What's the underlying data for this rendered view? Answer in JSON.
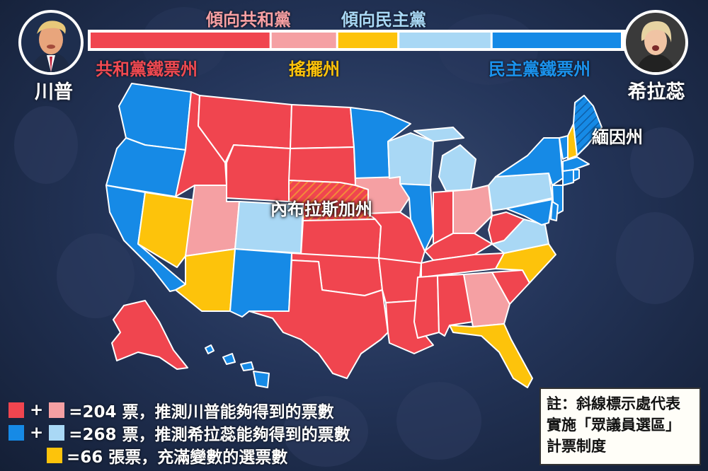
{
  "colors": {
    "solid_republican": "#f0454f",
    "lean_republican": "#f5a0a3",
    "swing": "#fdc30b",
    "lean_democrat": "#a9d8f5",
    "solid_democrat": "#168ae6",
    "hatch": "#f28a3a"
  },
  "header": {
    "lean_republican_label": "傾向共和黨",
    "lean_democrat_label": "傾向民主黨",
    "solid_republican_label": "共和黨鐵票州",
    "swing_label": "搖擺州",
    "solid_democrat_label": "民主黨鐵票州",
    "scale_segments": [
      {
        "category": "solid_republican",
        "share": 0.34
      },
      {
        "category": "lean_republican",
        "share": 0.125
      },
      {
        "category": "swing",
        "share": 0.115
      },
      {
        "category": "lean_democrat",
        "share": 0.175
      },
      {
        "category": "solid_democrat",
        "share": 0.245
      }
    ]
  },
  "candidates": {
    "left": {
      "name": "川普",
      "icon": "trump-photo"
    },
    "right": {
      "name": "希拉蕊",
      "icon": "clinton-photo"
    }
  },
  "map": {
    "labels": {
      "nebraska": "內布拉斯加州",
      "maine": "緬因州"
    },
    "states": {
      "WA": "solid_democrat",
      "OR": "solid_democrat",
      "CA": "solid_democrat",
      "NV": "swing",
      "ID": "solid_republican",
      "MT": "solid_republican",
      "WY": "solid_republican",
      "UT": "lean_republican",
      "AZ": "swing",
      "CO": "lean_democrat",
      "NM": "solid_democrat",
      "ND": "solid_republican",
      "SD": "solid_republican",
      "NE": "solid_republican",
      "KS": "solid_republican",
      "OK": "solid_republican",
      "TX": "solid_republican",
      "MN": "solid_democrat",
      "IA": "lean_republican",
      "MO": "solid_republican",
      "AR": "solid_republican",
      "LA": "solid_republican",
      "WI": "lean_democrat",
      "IL": "solid_democrat",
      "MI": "lean_democrat",
      "IN": "solid_republican",
      "OH": "lean_republican",
      "KY": "solid_republican",
      "TN": "solid_republican",
      "MS": "solid_republican",
      "AL": "solid_republican",
      "GA": "lean_republican",
      "FL": "swing",
      "SC": "solid_republican",
      "NC": "swing",
      "VA": "lean_democrat",
      "WV": "solid_republican",
      "PA": "lean_democrat",
      "NY": "solid_democrat",
      "VT": "solid_democrat",
      "NH": "swing",
      "ME": "solid_democrat",
      "MA": "solid_democrat",
      "CT": "solid_democrat",
      "RI": "solid_democrat",
      "NJ": "solid_democrat",
      "DE": "solid_democrat",
      "MD": "solid_democrat",
      "AK": "solid_republican",
      "HI": "solid_democrat"
    }
  },
  "legend": {
    "plus": "+",
    "republican_text": "=204 票，推測川普能夠得到的票數",
    "democrat_text": "=268 票，推測希拉蕊能夠得到的票數",
    "swing_text": "=66 張票，充滿變數的選票數"
  },
  "note": {
    "text": "註：斜線標示處代表實施「眾議員選區」計票制度"
  }
}
